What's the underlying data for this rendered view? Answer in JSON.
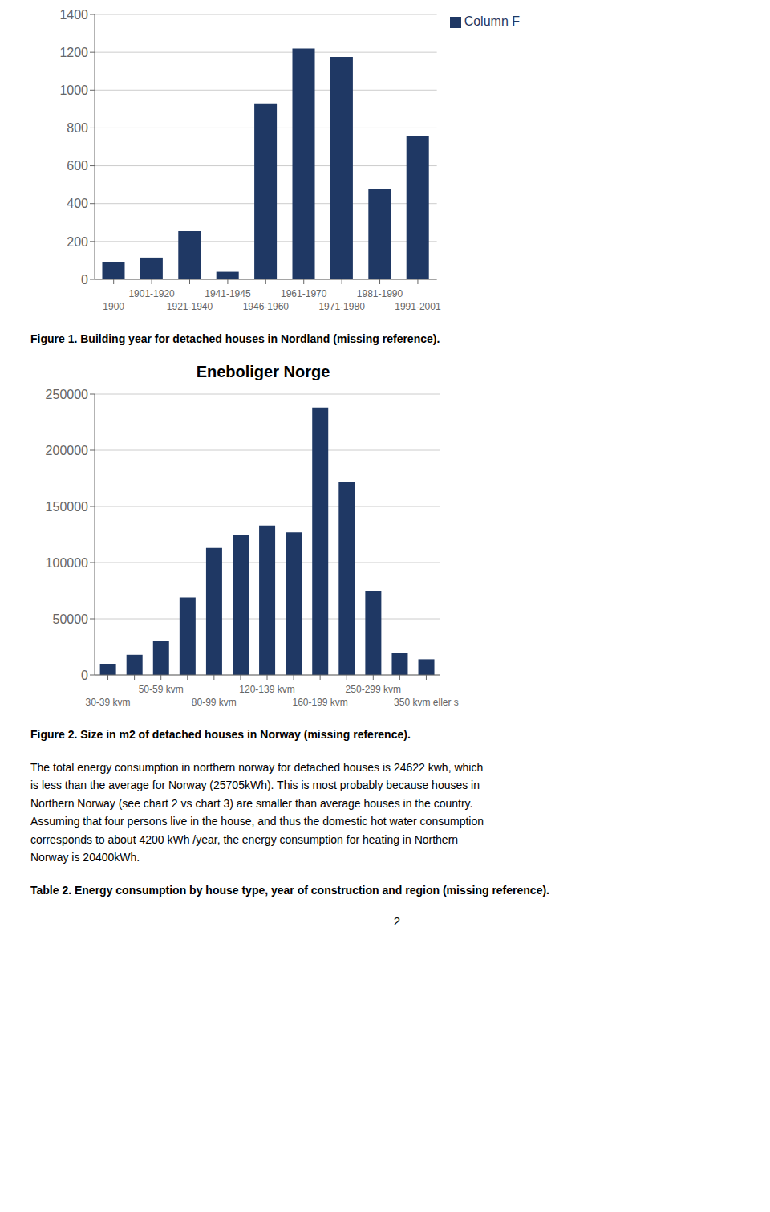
{
  "chart_data": [
    {
      "type": "bar",
      "categories": [
        "1900",
        "1901-1920",
        "1921-1940",
        "1941-1945",
        "1946-1960",
        "1961-1970",
        "1971-1980",
        "1981-1990",
        "1991-2001"
      ],
      "series": [
        {
          "name": "Column F",
          "color": "#1F3864",
          "values": [
            90,
            115,
            255,
            40,
            930,
            1220,
            1175,
            475,
            755
          ]
        }
      ],
      "ylim": [
        0,
        1400
      ],
      "yticks": [
        0,
        200,
        400,
        600,
        800,
        1000,
        1200,
        1400
      ],
      "grid": true,
      "legend": "upper right",
      "annotations": [
        "Figure 1. Building year for detached houses in Nordland (missing reference)."
      ]
    },
    {
      "type": "bar",
      "title": "Eneboliger Norge",
      "categories": [
        "30-39 kvm",
        null,
        "50-59 kvm",
        null,
        "80-99 kvm",
        null,
        "120-139 kvm",
        null,
        "160-199 kvm",
        null,
        "250-299 kvm",
        null,
        "350 kvm eller s"
      ],
      "values": [
        10000,
        18000,
        30000,
        69000,
        113000,
        125000,
        133000,
        127000,
        238000,
        172000,
        75000,
        20000,
        14000
      ],
      "color": "#1F3864",
      "ylim": [
        0,
        250000
      ],
      "yticks": [
        0,
        50000,
        100000,
        150000,
        200000,
        250000
      ],
      "grid": true,
      "annotations": [
        "Figure 2. Size in m2 of detached houses in Norway (missing reference)."
      ]
    }
  ],
  "annotations": [
    "The total energy consumption in northern norway for detached houses is 24622 kwh, which",
    "is less than the average for Norway (25705kWh). This is most probably because houses in",
    "Northern Norway (see chart 2 vs chart 3) are smaller than average houses in the country.",
    "Assuming that four persons live in the house, and thus the domestic hot water consumption",
    "corresponds to about 4200 kWh /year, the energy consumption for heating in Northern",
    "Norway is 20400kWh.",
    "Table 2. Energy consumption by house type, year of construction and region (missing reference).",
    "2"
  ]
}
